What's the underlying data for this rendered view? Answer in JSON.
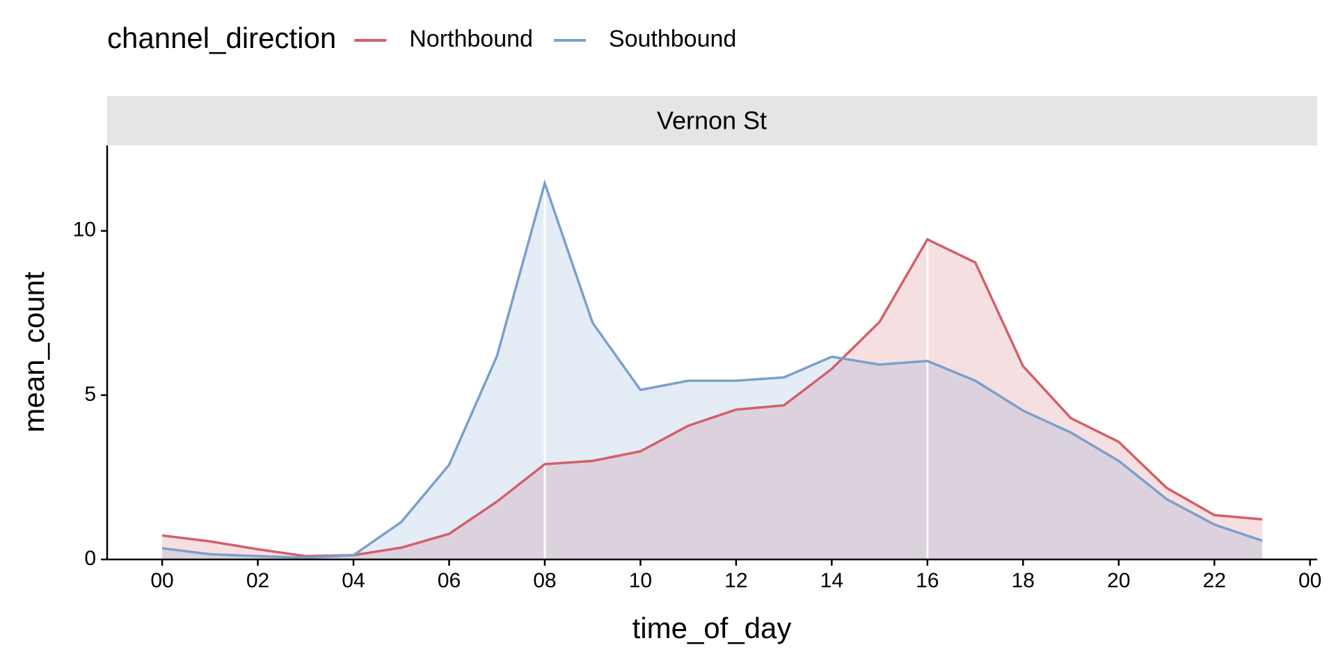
{
  "chart_data": {
    "type": "line",
    "area": true,
    "legend_title": "channel_direction",
    "legend_position": "top",
    "facet_label": "Vernon St",
    "x_label": "time_of_day",
    "y_label": "mean_count",
    "x": [
      0,
      1,
      2,
      3,
      4,
      5,
      6,
      7,
      8,
      9,
      10,
      11,
      12,
      13,
      14,
      15,
      16,
      17,
      18,
      19,
      20,
      21,
      22,
      23
    ],
    "series": [
      {
        "name": "Northbound",
        "color": "#d35f69",
        "values": [
          0.73,
          0.55,
          0.31,
          0.1,
          0.13,
          0.36,
          0.78,
          1.76,
          2.9,
          3.0,
          3.29,
          4.07,
          4.56,
          4.69,
          5.8,
          7.23,
          9.74,
          9.04,
          5.88,
          4.3,
          3.58,
          2.18,
          1.35,
          1.22
        ]
      },
      {
        "name": "Southbound",
        "color": "#7aa0cc",
        "values": [
          0.34,
          0.16,
          0.1,
          0.05,
          0.13,
          1.14,
          2.88,
          6.19,
          11.45,
          7.2,
          5.16,
          5.44,
          5.44,
          5.54,
          6.17,
          5.93,
          6.04,
          5.44,
          4.53,
          3.86,
          3.0,
          1.84,
          1.06,
          0.57
        ]
      }
    ],
    "xlim": [
      -1.15,
      24.15
    ],
    "xticks": [
      {
        "value": 0,
        "label": "00"
      },
      {
        "value": 2,
        "label": "02"
      },
      {
        "value": 4,
        "label": "04"
      },
      {
        "value": 6,
        "label": "06"
      },
      {
        "value": 8,
        "label": "08"
      },
      10,
      12,
      14,
      16,
      18,
      20,
      22,
      {
        "value": 24,
        "label": "00"
      }
    ],
    "ylim": [
      0,
      12.6
    ],
    "yticks": [
      0,
      5,
      10
    ],
    "vlines": [
      8,
      16
    ]
  }
}
